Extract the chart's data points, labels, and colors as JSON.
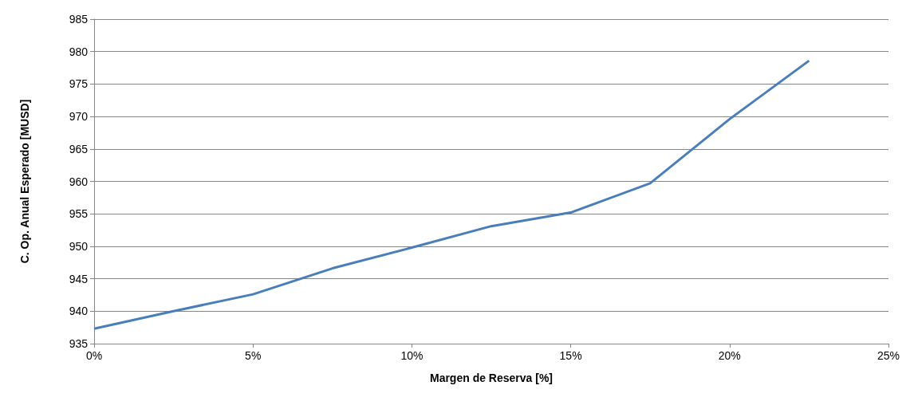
{
  "chart_data": {
    "type": "line",
    "xlabel": "Margen de Reserva [%]",
    "ylabel": "C. Op. Anual Esperado [MUSD]",
    "x": [
      0,
      2.5,
      5,
      7.5,
      10,
      12.5,
      15,
      17.5,
      20,
      22.5
    ],
    "series": [
      {
        "color": "#4a7ebb",
        "values": [
          937.3,
          940.0,
          942.6,
          946.6,
          949.8,
          953.1,
          955.2,
          959.7,
          969.6,
          978.6
        ]
      }
    ],
    "xlim": [
      0,
      25
    ],
    "xticks": [
      {
        "value": 0,
        "label": "0%"
      },
      {
        "value": 5,
        "label": "5%"
      },
      {
        "value": 10,
        "label": "10%"
      },
      {
        "value": 15,
        "label": "15%"
      },
      {
        "value": 20,
        "label": "20%"
      },
      {
        "value": 25,
        "label": "25%"
      }
    ],
    "ylim": [
      935,
      985
    ],
    "yticks": [
      935,
      940,
      945,
      950,
      955,
      960,
      965,
      970,
      975,
      980,
      985
    ],
    "grid": "y",
    "marker": "none",
    "line_style": "solid"
  }
}
